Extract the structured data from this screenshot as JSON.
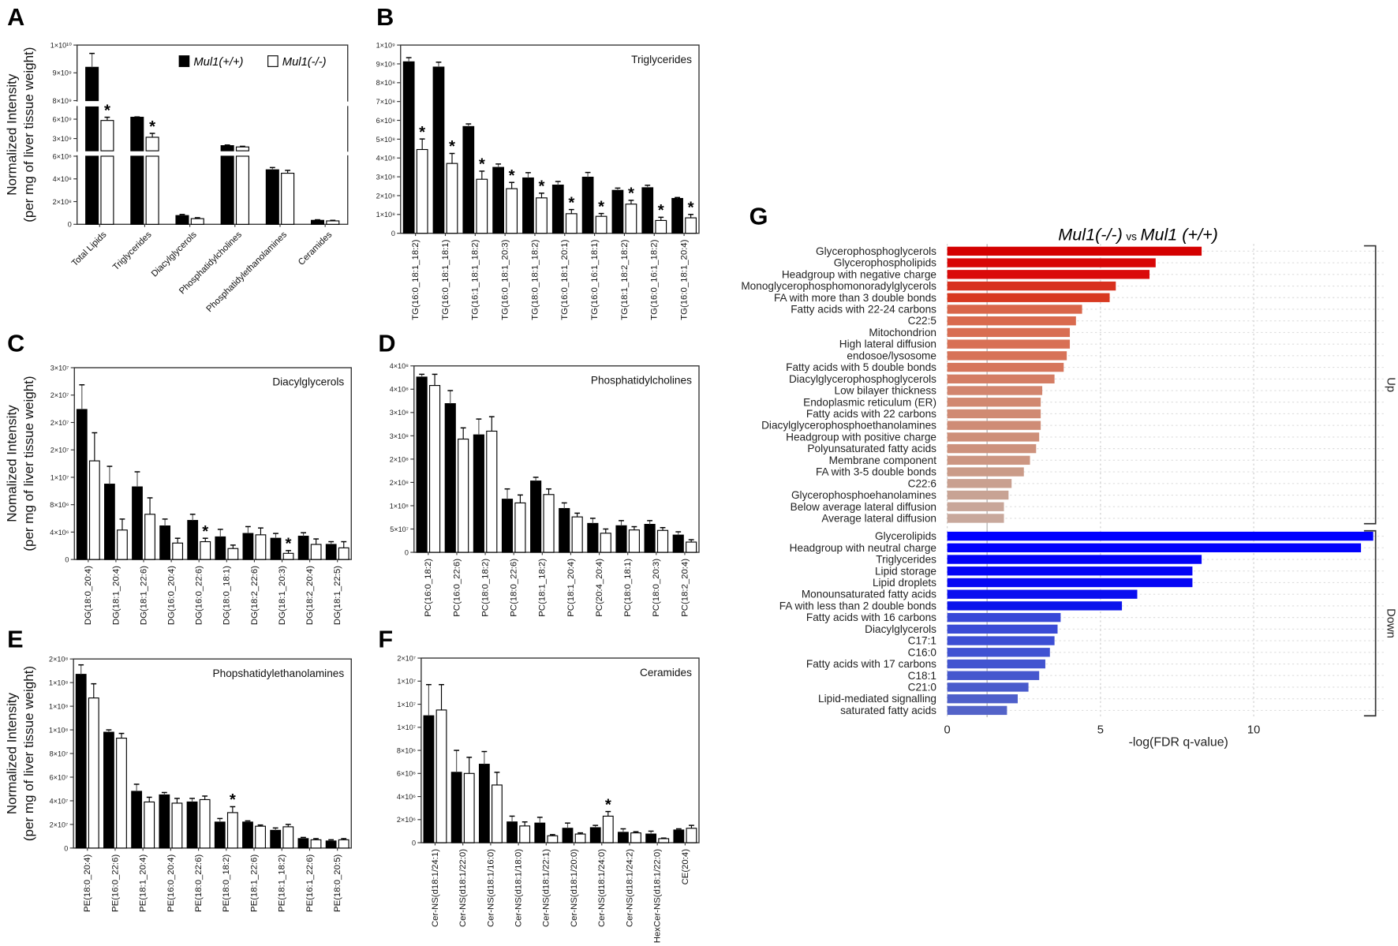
{
  "chart_data": [
    {
      "panel": "A",
      "type": "bar",
      "title": "",
      "ylabel": [
        "Normalized Intensity",
        "(per mg of liver tissue weight)"
      ],
      "legend": [
        {
          "name": "Mul1(+/+)",
          "color": "#000000"
        },
        {
          "name": "Mul1(-/-)",
          "color": "#ffffff"
        }
      ],
      "legend_position": "top-right",
      "categories": [
        "Total Lipids",
        "Triglycerides",
        "Diacylglycerols",
        "Phosphatidylcholines",
        "Phosphatidylethanolamines",
        "Ceramides"
      ],
      "axis_segments": [
        [
          0,
          600000000
        ],
        [
          1100000000,
          7900000000
        ],
        [
          8000000000,
          10000000000
        ]
      ],
      "ticks": [
        0,
        200000000,
        400000000,
        600000000,
        3000000000,
        6000000000,
        8000000000,
        9000000000,
        10000000000
      ],
      "tick_labels": [
        "0",
        "2×10⁸",
        "4×10⁸",
        "6×10⁸",
        "3×10⁹",
        "6×10⁹",
        "8×10⁹",
        "9×10⁹",
        "1×10¹⁰"
      ],
      "series": [
        {
          "name": "Mul1(+/+)",
          "values": [
            9200000000,
            6300000000,
            77000000,
            1900000000,
            480000000,
            35000000
          ],
          "err": [
            500000000,
            50000000,
            10000000,
            100000000,
            20000000,
            5000000
          ]
        },
        {
          "name": "Mul1(-/-)",
          "values": [
            5800000000,
            3200000000,
            50000000,
            1700000000,
            450000000,
            30000000
          ],
          "err": [
            500000000,
            600000000,
            8000000,
            100000000,
            25000000,
            5000000
          ]
        }
      ],
      "significant": [
        0,
        1
      ]
    },
    {
      "panel": "B",
      "type": "bar",
      "title": "Triglycerides",
      "ylabel": [],
      "categories": [
        "TG(16:0_18:1_18:2)",
        "TG(16:0_18:1_18:1)",
        "TG(16:1_18:1_18:2)",
        "TG(16:0_18:1_20:3)",
        "TG(18:0_18:1_18:2)",
        "TG(16:0_18:1_20:1)",
        "TG(16:0_16:1_18:1)",
        "TG(18:1_18:2_18:2)",
        "TG(16:0_16:1_18:2)",
        "TG(16:0_18:1_20:4)"
      ],
      "ylim": [
        0,
        1000000000
      ],
      "ticks": [
        0,
        100000000,
        200000000,
        300000000,
        400000000,
        500000000,
        600000000,
        700000000,
        800000000,
        900000000,
        1000000000
      ],
      "tick_labels": [
        "0",
        "1×10⁸",
        "2×10⁸",
        "3×10⁸",
        "4×10⁸",
        "5×10⁸",
        "6×10⁸",
        "7×10⁸",
        "8×10⁸",
        "9×10⁸",
        "1×10⁹"
      ],
      "series": [
        {
          "name": "Mul1(+/+)",
          "values": [
            911000000,
            883000000,
            567000000,
            350000000,
            294000000,
            256000000,
            298000000,
            228000000,
            242000000,
            185000000
          ],
          "err": [
            22000000,
            26000000,
            14000000,
            18000000,
            28000000,
            19000000,
            25000000,
            12000000,
            13000000,
            5000000
          ]
        },
        {
          "name": "Mul1(-/-)",
          "values": [
            445000000,
            371000000,
            287000000,
            237000000,
            188000000,
            104000000,
            90000000,
            155000000,
            68000000,
            82000000
          ],
          "err": [
            56000000,
            53000000,
            43000000,
            33000000,
            25000000,
            22000000,
            15000000,
            20000000,
            17000000,
            18000000
          ]
        }
      ],
      "significant": [
        0,
        1,
        2,
        3,
        4,
        5,
        6,
        7,
        8,
        9
      ]
    },
    {
      "panel": "C",
      "type": "bar",
      "title": "Diacylglycerols",
      "ylabel": [
        "Nomalized Intensity",
        "(per mg of liver tissue weight)"
      ],
      "categories": [
        "DG(18:0_20:4)",
        "DG(18:1_20:4)",
        "DG(18:1_22:6)",
        "DG(16:0_20:4)",
        "DG(16:0_22:6)",
        "DG(18:0_18:1)",
        "DG(18:2_22:6)",
        "DG(18:1_20:3)",
        "DG(18:2_20:4)",
        "DG(18:1_22:5)"
      ],
      "ylim": [
        0,
        28000000
      ],
      "ticks": [
        0,
        4000000,
        8000000,
        12000000,
        16000000,
        20000000,
        24000000,
        28000000
      ],
      "tick_labels": [
        "0",
        "4×10⁶",
        "8×10⁶",
        "1×10⁷",
        "2×10⁷",
        "2×10⁷",
        "2×10⁷",
        "3×10⁷"
      ],
      "series": [
        {
          "name": "Mul1(+/+)",
          "values": [
            21900000,
            11000000,
            10600000,
            4900000,
            5700000,
            3300000,
            3800000,
            3100000,
            3400000,
            2200000
          ],
          "err": [
            3600000,
            2600000,
            2200000,
            1000000,
            900000,
            1100000,
            1000000,
            700000,
            500000,
            400000
          ]
        },
        {
          "name": "Mul1(-/-)",
          "values": [
            14400000,
            4300000,
            6600000,
            2400000,
            2600000,
            1600000,
            3600000,
            900000,
            2200000,
            1700000
          ],
          "err": [
            4100000,
            1600000,
            2400000,
            700000,
            500000,
            500000,
            1000000,
            400000,
            800000,
            900000
          ]
        }
      ],
      "significant": [
        4,
        7
      ]
    },
    {
      "panel": "D",
      "type": "bar",
      "title": "Phosphatidylcholines",
      "ylabel": [],
      "categories": [
        "PC(16:0_18:2)",
        "PC(16:0_22:6)",
        "PC(18:0_18:2)",
        "PC(18:0_22:6)",
        "PC(18:1_18:2)",
        "PC(18:1_20:4)",
        "PC(20:4_20:4)",
        "PC(18:0_18:1)",
        "PC(18:0_20:3)",
        "PC(18:2_20:4)"
      ],
      "ylim": [
        0,
        400000000
      ],
      "ticks": [
        0,
        50000000,
        100000000,
        150000000,
        200000000,
        250000000,
        300000000,
        350000000,
        400000000
      ],
      "tick_labels": [
        "0",
        "5×10⁷",
        "1×10⁸",
        "2×10⁸",
        "2×10⁸",
        "3×10⁸",
        "3×10⁸",
        "4×10⁸",
        "4×10⁸"
      ],
      "series": [
        {
          "name": "Mul1(+/+)",
          "values": [
            376000000,
            319000000,
            252000000,
            114000000,
            153000000,
            94000000,
            62000000,
            57000000,
            60000000,
            37000000
          ],
          "err": [
            6000000,
            28000000,
            34000000,
            22000000,
            8000000,
            12000000,
            11000000,
            11000000,
            8000000,
            7000000
          ]
        },
        {
          "name": "Mul1(-/-)",
          "values": [
            358000000,
            243000000,
            260000000,
            106000000,
            124000000,
            76000000,
            41000000,
            48000000,
            47000000,
            22000000
          ],
          "err": [
            24000000,
            24000000,
            31000000,
            17000000,
            12000000,
            8000000,
            9000000,
            7000000,
            6000000,
            5000000
          ]
        }
      ],
      "significant": []
    },
    {
      "panel": "E",
      "type": "bar",
      "title": "Phopshatidylethanolamines",
      "ylabel": [
        "Normalized Intensity",
        "(per mg of liver tissue weight)"
      ],
      "categories": [
        "PE(18:0_20:4)",
        "PE(16:0_22:6)",
        "PE(18:1_20:4)",
        "PE(16:0_20:4)",
        "PE(18:0_22:6)",
        "PE(18:0_18:2)",
        "PE(18:1_22:6)",
        "PE(18:1_18:2)",
        "PE(16:1_22:6)",
        "PE(18:0_20:5)"
      ],
      "ylim": [
        0,
        160000000
      ],
      "ticks": [
        0,
        20000000,
        40000000,
        60000000,
        80000000,
        100000000,
        120000000,
        140000000,
        160000000
      ],
      "tick_labels": [
        "0",
        "2×10⁷",
        "4×10⁷",
        "6×10⁷",
        "8×10⁷",
        "1×10⁸",
        "1×10⁸",
        "1×10⁸",
        "2×10⁸"
      ],
      "series": [
        {
          "name": "Mul1(+/+)",
          "values": [
            147000000,
            98000000,
            48000000,
            45000000,
            39000000,
            22000000,
            22000000,
            15000000,
            8000000,
            6000000
          ],
          "err": [
            8000000,
            2000000,
            6000000,
            2000000,
            3000000,
            3000000,
            1000000,
            2000000,
            1000000,
            1000000
          ]
        },
        {
          "name": "Mul1(-/-)",
          "values": [
            127000000,
            93000000,
            39000000,
            38000000,
            41000000,
            30000000,
            18500000,
            18000000,
            7000000,
            7000000
          ],
          "err": [
            12000000,
            4000000,
            4000000,
            4000000,
            3000000,
            5000000,
            1000000,
            2000000,
            1000000,
            1000000
          ]
        }
      ],
      "significant": [
        5
      ]
    },
    {
      "panel": "F",
      "type": "bar",
      "title": "Ceramides",
      "ylabel": [],
      "categories": [
        "Cer-NS(d18:1/24:1)",
        "Cer-NS(d18:1/22:0)",
        "Cer-NS(d18:1/16:0)",
        "Cer-NS(d18:1/18:0)",
        "Cer-NS(d18:1/22:1)",
        "Cer-NS(d18:1/20:0)",
        "Cer-NS(d18:1/24:0)",
        "Cer-NS(d18:1/24:2)",
        "HexCer-NS(d18:1/22:0)",
        "CE(20:4)"
      ],
      "ylim": [
        0,
        16000000
      ],
      "ticks": [
        0,
        2000000,
        4000000,
        6000000,
        8000000,
        10000000,
        12000000,
        14000000,
        16000000
      ],
      "tick_labels": [
        "0",
        "2×10⁶",
        "4×10⁶",
        "6×10⁶",
        "8×10⁶",
        "1×10⁷",
        "1×10⁷",
        "1×10⁷",
        "2×10⁷"
      ],
      "series": [
        {
          "name": "Mul1(+/+)",
          "values": [
            11000000,
            6100000,
            6800000,
            1800000,
            1700000,
            1250000,
            1300000,
            900000,
            750000,
            1100000
          ],
          "err": [
            2700000,
            1900000,
            1100000,
            500000,
            500000,
            450000,
            200000,
            300000,
            250000,
            100000
          ]
        },
        {
          "name": "Mul1(-/-)",
          "values": [
            11500000,
            6000000,
            5000000,
            1450000,
            600000,
            750000,
            2300000,
            850000,
            350000,
            1250000
          ],
          "err": [
            2200000,
            1400000,
            1100000,
            350000,
            100000,
            100000,
            400000,
            100000,
            50000,
            250000
          ]
        }
      ],
      "significant": [
        6
      ]
    },
    {
      "panel": "G",
      "type": "bar",
      "orientation": "horizontal",
      "title": {
        "left": "Mul1(-/-)",
        "mid": "vs",
        "right": "Mul1 (+/+)"
      },
      "xlabel": "-log(FDR q-value)",
      "xlim": [
        0,
        14
      ],
      "ticks": [
        0,
        5,
        10
      ],
      "tick_labels": [
        "0",
        "5",
        "10"
      ],
      "threshold": 1.3,
      "groups": [
        {
          "name": "Up",
          "items": [
            {
              "label": "Glycerophosphoglycerols",
              "value": 8.3,
              "color": "#d40000"
            },
            {
              "label": "Glycerophospholipids",
              "value": 6.8,
              "color": "#d80606"
            },
            {
              "label": "Headgroup with negative charge",
              "value": 6.6,
              "color": "#da0a0a"
            },
            {
              "label": "Monoglycerophosphomonoradylglycerols",
              "value": 5.5,
              "color": "#d8301e"
            },
            {
              "label": "FA with more than 3 double bonds",
              "value": 5.3,
              "color": "#d83820"
            },
            {
              "label": "Fatty acids with 22-24 carbons",
              "value": 4.4,
              "color": "#d9664a"
            },
            {
              "label": "C22:5",
              "value": 4.2,
              "color": "#d96a4e"
            },
            {
              "label": "Mitochondrion",
              "value": 4.0,
              "color": "#d86d52"
            },
            {
              "label": "High lateral diffusion",
              "value": 4.0,
              "color": "#d87055"
            },
            {
              "label": "endosoe/lysosome",
              "value": 3.9,
              "color": "#d77358"
            },
            {
              "label": "Fatty acids with 5 double bonds",
              "value": 3.8,
              "color": "#d6765c"
            },
            {
              "label": "Diacylglycerophosphoglycerols",
              "value": 3.5,
              "color": "#d47d64"
            },
            {
              "label": "Low bilayer thickness",
              "value": 3.1,
              "color": "#d2856e"
            },
            {
              "label": "Endoplasmic reticulum (ER)",
              "value": 3.05,
              "color": "#d18870"
            },
            {
              "label": "Fatty acids with 22 carbons",
              "value": 3.05,
              "color": "#d08a73"
            },
            {
              "label": "Diacylglycerophosphoethanolamines",
              "value": 3.05,
              "color": "#cf8c76"
            },
            {
              "label": "Headgroup with positive charge",
              "value": 3.0,
              "color": "#ce8f79"
            },
            {
              "label": "Polyunsaturated fatty acids",
              "value": 2.9,
              "color": "#cd927d"
            },
            {
              "label": "Membrane component",
              "value": 2.7,
              "color": "#cc9682"
            },
            {
              "label": "FA with 3-5 double bonds",
              "value": 2.5,
              "color": "#ca9b88"
            },
            {
              "label": "C22:6",
              "value": 2.1,
              "color": "#c9a090"
            },
            {
              "label": "Glycerophosphoehanolamines",
              "value": 2.0,
              "color": "#c8a394"
            },
            {
              "label": "Below average lateral diffusion",
              "value": 1.85,
              "color": "#c8a699"
            },
            {
              "label": "Average lateral diffusion",
              "value": 1.85,
              "color": "#c8a89c"
            }
          ]
        },
        {
          "name": "Down",
          "items": [
            {
              "label": "Glycerolipids",
              "value": 13.9,
              "color": "#0000ff"
            },
            {
              "label": "Headgroup with neutral charge",
              "value": 13.5,
              "color": "#0000fc"
            },
            {
              "label": "Triglycerides",
              "value": 8.3,
              "color": "#0202f8"
            },
            {
              "label": "Lipid storage",
              "value": 8.0,
              "color": "#0404f6"
            },
            {
              "label": "Lipid droplets",
              "value": 8.0,
              "color": "#0606f4"
            },
            {
              "label": "Monounsaturated fatty acids",
              "value": 6.2,
              "color": "#0a0ff0"
            },
            {
              "label": "FA with less than 2 double bonds",
              "value": 5.7,
              "color": "#0c14ec"
            },
            {
              "label": "Fatty acids with 16 carbons",
              "value": 3.7,
              "color": "#3848d8"
            },
            {
              "label": "Diacylglycerols",
              "value": 3.6,
              "color": "#3a4bd6"
            },
            {
              "label": "C17:1",
              "value": 3.5,
              "color": "#3c4ed4"
            },
            {
              "label": "C16:0",
              "value": 3.35,
              "color": "#3f51d2"
            },
            {
              "label": "Fatty acids with 17 carbons",
              "value": 3.2,
              "color": "#4254d0"
            },
            {
              "label": "C18:1",
              "value": 3.0,
              "color": "#4557ce"
            },
            {
              "label": "C21:0",
              "value": 2.65,
              "color": "#495bcc"
            },
            {
              "label": "Lipid-mediated signalling",
              "value": 2.3,
              "color": "#4e5fca"
            },
            {
              "label": "saturated fatty acids",
              "value": 1.95,
              "color": "#5363c8"
            }
          ]
        }
      ]
    }
  ]
}
